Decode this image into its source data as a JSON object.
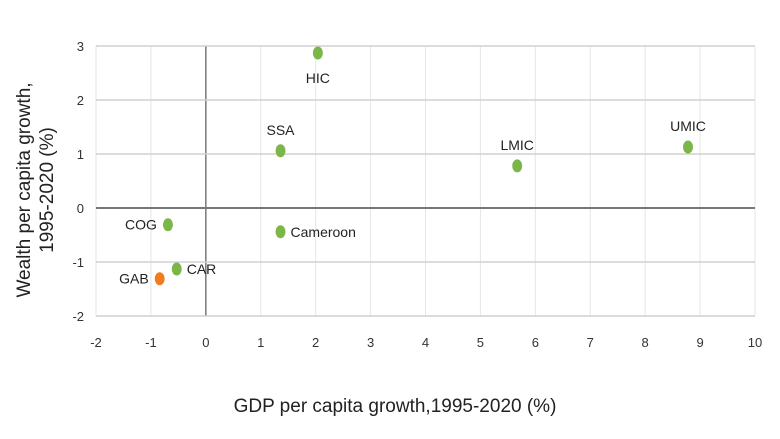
{
  "chart_data": {
    "type": "scatter",
    "title": "",
    "xlabel": "GDP per capita growth,1995-2020 (%)",
    "ylabel_lines": [
      "Wealth per capita growth,",
      "1995-2020 (%)"
    ],
    "xlim": [
      -2,
      10
    ],
    "ylim": [
      -2,
      3
    ],
    "xticks": [
      "-2",
      "-1",
      "0",
      "1",
      "2",
      "3",
      "4",
      "5",
      "6",
      "7",
      "8",
      "9",
      "10"
    ],
    "yticks": [
      "3",
      "2",
      "1",
      "0",
      "-1",
      "-2"
    ],
    "grid": true,
    "colors": {
      "default": "#7ab648",
      "highlight": "#f07c1e",
      "grid_h": "#d0d0d0",
      "grid_v": "#e6e6e6",
      "zero_axis": "#777777"
    },
    "points": [
      {
        "label": "HIC",
        "x": 2.04,
        "y": 2.87,
        "highlight": false,
        "label_pos": "below"
      },
      {
        "label": "SSA",
        "x": 1.36,
        "y": 1.06,
        "highlight": false,
        "label_pos": "above"
      },
      {
        "label": "LMIC",
        "x": 5.67,
        "y": 0.78,
        "highlight": false,
        "label_pos": "above"
      },
      {
        "label": "UMIC",
        "x": 8.78,
        "y": 1.13,
        "highlight": false,
        "label_pos": "above"
      },
      {
        "label": "COG",
        "x": -0.69,
        "y": -0.31,
        "highlight": false,
        "label_pos": "left"
      },
      {
        "label": "Cameroon",
        "x": 1.36,
        "y": -0.44,
        "highlight": false,
        "label_pos": "right"
      },
      {
        "label": "CAR",
        "x": -0.53,
        "y": -1.13,
        "highlight": false,
        "label_pos": "right"
      },
      {
        "label": "GAB",
        "x": -0.84,
        "y": -1.31,
        "highlight": true,
        "label_pos": "left"
      }
    ]
  }
}
